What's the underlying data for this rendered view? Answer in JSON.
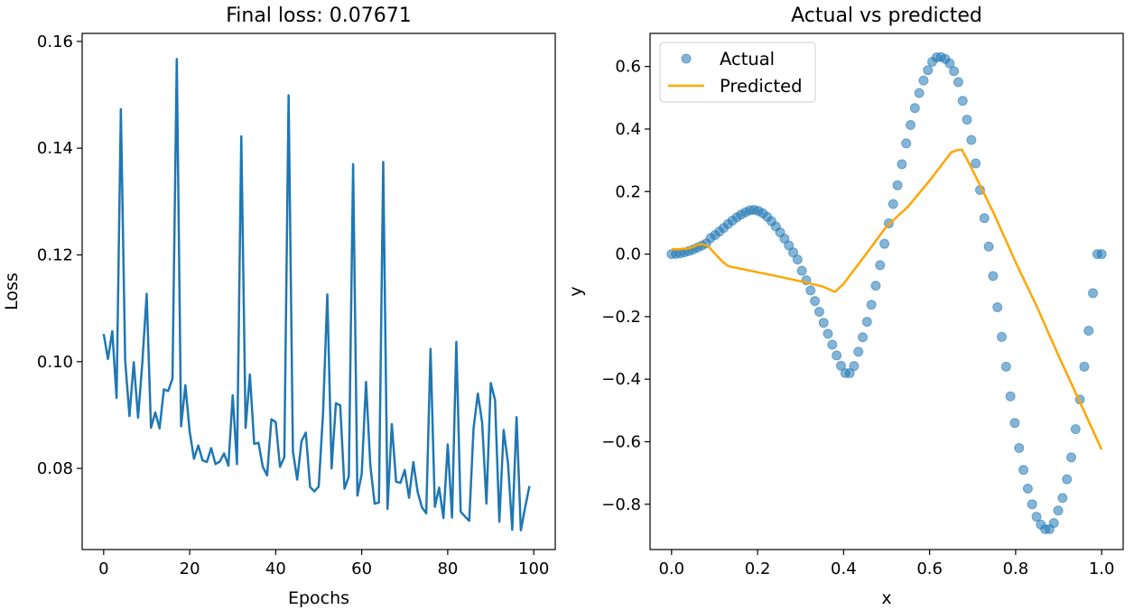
{
  "chart_data": [
    {
      "type": "line",
      "title": "Final loss: 0.07671",
      "xlabel": "Epochs",
      "ylabel": "Loss",
      "xlim": [
        -5,
        105
      ],
      "ylim": [
        0.0648,
        0.1615
      ],
      "xticks": [
        0,
        20,
        40,
        60,
        80,
        100
      ],
      "yticks": [
        0.08,
        0.1,
        0.12,
        0.14,
        0.16
      ],
      "ytick_format": 2,
      "color": "#1f77b4",
      "series": [
        {
          "x": [
            0,
            1,
            2,
            3,
            4,
            5,
            6,
            7,
            8,
            9,
            10,
            11,
            12,
            13,
            14,
            15,
            16,
            17,
            18,
            19,
            20,
            21,
            22,
            23,
            24,
            25,
            26,
            27,
            28,
            29,
            30,
            31,
            32,
            33,
            34,
            35,
            36,
            37,
            38,
            39,
            40,
            41,
            42,
            43,
            44,
            45,
            46,
            47,
            48,
            49,
            50,
            51,
            52,
            53,
            54,
            55,
            56,
            57,
            58,
            59,
            60,
            61,
            62,
            63,
            64,
            65,
            66,
            67,
            68,
            69,
            70,
            71,
            72,
            73,
            74,
            75,
            76,
            77,
            78,
            79,
            80,
            81,
            82,
            83,
            84,
            85,
            86,
            87,
            88,
            89,
            90,
            91,
            92,
            93,
            94,
            95,
            96,
            97,
            98,
            99
          ],
          "values": [
            0.1052,
            0.1005,
            0.1057,
            0.0932,
            0.1473,
            0.1002,
            0.0898,
            0.0999,
            0.0895,
            0.0999,
            0.1127,
            0.0876,
            0.0905,
            0.0875,
            0.0948,
            0.0945,
            0.0968,
            0.1567,
            0.0879,
            0.0956,
            0.0869,
            0.0818,
            0.0843,
            0.0815,
            0.0812,
            0.0838,
            0.0808,
            0.0813,
            0.0828,
            0.0805,
            0.0937,
            0.0808,
            0.1422,
            0.0876,
            0.0976,
            0.0846,
            0.0848,
            0.0803,
            0.0787,
            0.0892,
            0.0887,
            0.0803,
            0.0821,
            0.1499,
            0.0832,
            0.0779,
            0.0851,
            0.0867,
            0.0765,
            0.0757,
            0.0766,
            0.0902,
            0.1126,
            0.08,
            0.0922,
            0.0918,
            0.0762,
            0.0785,
            0.137,
            0.0749,
            0.079,
            0.0962,
            0.0806,
            0.0734,
            0.0736,
            0.1374,
            0.0724,
            0.0883,
            0.0775,
            0.0773,
            0.0797,
            0.0745,
            0.0812,
            0.0756,
            0.0727,
            0.0716,
            0.1024,
            0.0728,
            0.0764,
            0.0707,
            0.0845,
            0.0708,
            0.1037,
            0.0719,
            0.071,
            0.0702,
            0.0875,
            0.094,
            0.0886,
            0.0734,
            0.096,
            0.0928,
            0.07,
            0.0872,
            0.0811,
            0.0685,
            0.0896,
            0.0684,
            0.0727,
            0.0767
          ]
        }
      ]
    },
    {
      "type": "scatter",
      "title": "Actual vs predicted",
      "xlabel": "x",
      "ylabel": "y",
      "xlim": [
        -0.05,
        1.05
      ],
      "ylim": [
        -0.9448,
        0.7058
      ],
      "xticks": [
        0.0,
        0.2,
        0.4,
        0.6,
        0.8,
        1.0
      ],
      "yticks": [
        -0.8,
        -0.6,
        -0.4,
        -0.2,
        0.0,
        0.2,
        0.4,
        0.6
      ],
      "xtick_format": 1,
      "ytick_format": 1,
      "legend": {
        "position": "upper-left",
        "entries": [
          "Actual",
          "Predicted"
        ]
      },
      "series": [
        {
          "name": "Actual",
          "kind": "scatter",
          "color": "#1f77b4",
          "x": [
            0.0,
            0.0101,
            0.0202,
            0.0303,
            0.0404,
            0.0505,
            0.0606,
            0.0707,
            0.0808,
            0.0909,
            0.101,
            0.1111,
            0.1212,
            0.1313,
            0.1414,
            0.1515,
            0.1616,
            0.1717,
            0.1818,
            0.1919,
            0.202,
            0.2121,
            0.2222,
            0.2323,
            0.2424,
            0.2525,
            0.2626,
            0.2727,
            0.2828,
            0.2929,
            0.303,
            0.3131,
            0.3232,
            0.3333,
            0.3434,
            0.3535,
            0.3636,
            0.3737,
            0.3838,
            0.3939,
            0.404,
            0.4141,
            0.4242,
            0.4343,
            0.4444,
            0.4545,
            0.4646,
            0.4747,
            0.4848,
            0.4949,
            0.5051,
            0.5152,
            0.5253,
            0.5354,
            0.5455,
            0.5556,
            0.5657,
            0.5758,
            0.5859,
            0.596,
            0.6061,
            0.6162,
            0.6263,
            0.6364,
            0.6465,
            0.6566,
            0.6667,
            0.6768,
            0.6869,
            0.697,
            0.7071,
            0.7172,
            0.7273,
            0.7374,
            0.7475,
            0.7576,
            0.7677,
            0.7778,
            0.7879,
            0.798,
            0.8081,
            0.8182,
            0.8283,
            0.8384,
            0.8485,
            0.8586,
            0.8687,
            0.8788,
            0.8889,
            0.899,
            0.9091,
            0.9192,
            0.9293,
            0.9394,
            0.9495,
            0.9596,
            0.9697,
            0.9798,
            0.9899,
            1.0
          ],
          "values": [
            0.0,
            0.0006,
            0.0025,
            0.0056,
            0.0097,
            0.0148,
            0.0207,
            0.0272,
            0.0341,
            0.0513,
            0.0609,
            0.0721,
            0.0837,
            0.0962,
            0.1072,
            0.1174,
            0.1261,
            0.1338,
            0.14,
            0.1412,
            0.1379,
            0.1305,
            0.1194,
            0.1051,
            0.0883,
            0.0695,
            0.0492,
            0.0276,
            0.0053,
            -0.0174,
            -0.0533,
            -0.0838,
            -0.1162,
            -0.15,
            -0.1845,
            -0.2196,
            -0.2548,
            -0.2898,
            -0.324,
            -0.3571,
            -0.3806,
            -0.3806,
            -0.3578,
            -0.3121,
            -0.2659,
            -0.2165,
            -0.1621,
            -0.1011,
            -0.0354,
            0.0329,
            0.0982,
            0.16,
            0.2201,
            0.2875,
            0.354,
            0.413,
            0.467,
            0.515,
            0.555,
            0.588,
            0.615,
            0.629,
            0.63,
            0.624,
            0.61,
            0.585,
            0.55,
            0.49,
            0.43,
            0.365,
            0.29,
            0.205,
            0.115,
            0.024,
            -0.07,
            -0.17,
            -0.265,
            -0.36,
            -0.455,
            -0.54,
            -0.62,
            -0.69,
            -0.75,
            -0.8,
            -0.84,
            -0.865,
            -0.88,
            -0.88,
            -0.86,
            -0.82,
            -0.78,
            -0.72,
            -0.65,
            -0.56,
            -0.465,
            -0.36,
            -0.245,
            -0.125,
            0.0,
            0.0
          ]
        },
        {
          "name": "Predicted",
          "kind": "line",
          "color": "#ffa500",
          "x": [
            0.0,
            0.02,
            0.04,
            0.05,
            0.06,
            0.07,
            0.08,
            0.09,
            0.1,
            0.11,
            0.12,
            0.13,
            0.14,
            0.2,
            0.25,
            0.3,
            0.35,
            0.38,
            0.4,
            0.45,
            0.5,
            0.55,
            0.6,
            0.65,
            0.665,
            0.675,
            0.7,
            0.75,
            0.8,
            0.85,
            0.9,
            0.95,
            1.0
          ],
          "values": [
            0.015,
            0.016,
            0.018,
            0.023,
            0.029,
            0.032,
            0.028,
            0.018,
            0.003,
            -0.012,
            -0.026,
            -0.037,
            -0.041,
            -0.058,
            -0.072,
            -0.087,
            -0.103,
            -0.121,
            -0.095,
            -0.004,
            0.089,
            0.152,
            0.235,
            0.325,
            0.333,
            0.334,
            0.268,
            0.128,
            -0.026,
            -0.17,
            -0.326,
            -0.475,
            -0.625
          ]
        }
      ]
    }
  ]
}
